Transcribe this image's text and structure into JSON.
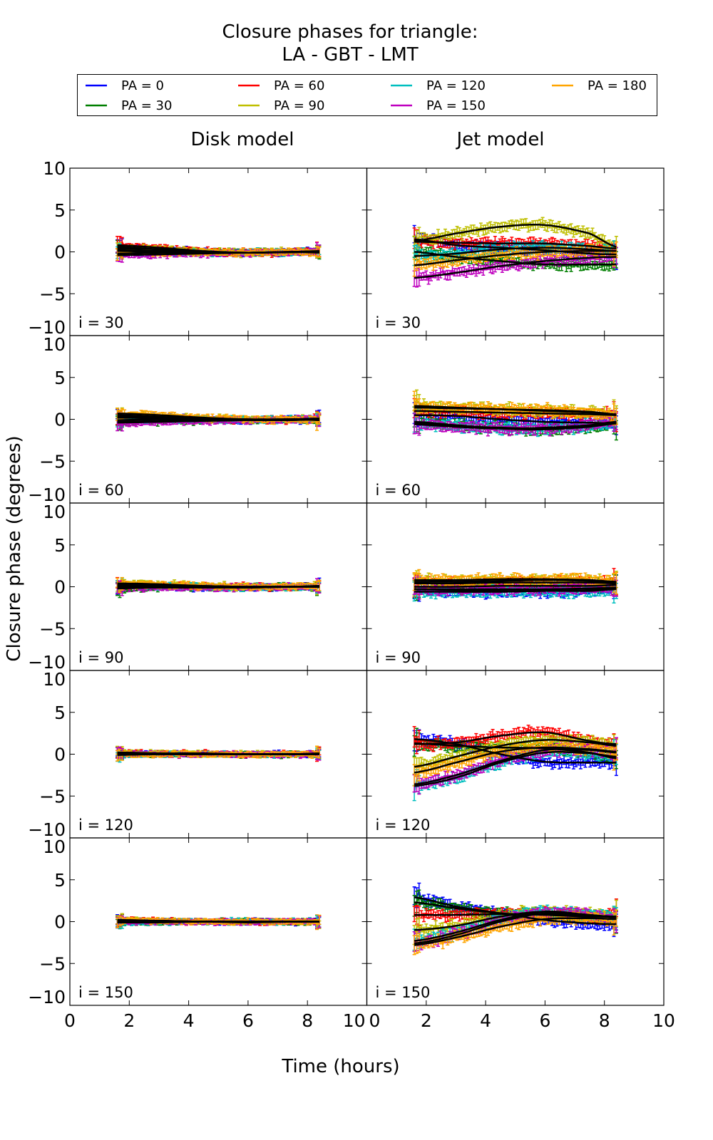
{
  "chart_data": {
    "type": "line",
    "title_line1": "Closure phases for triangle:",
    "title_line2": "LA - GBT - LMT",
    "xlabel": "Time (hours)",
    "ylabel": "Closure phase (degrees)",
    "xlim": [
      0,
      10
    ],
    "ylim": [
      -10,
      10
    ],
    "xticks": [
      0,
      2,
      4,
      6,
      8,
      10
    ],
    "yticks": [
      -10,
      -5,
      0,
      5,
      10
    ],
    "grid": false,
    "legend_placement": "top",
    "columns": [
      "Disk model",
      "Jet model"
    ],
    "rows": [
      "i = 30",
      "i = 60",
      "i = 90",
      "i = 120",
      "i = 150"
    ],
    "series": [
      {
        "name": "PA = 0",
        "color": "#0000ff"
      },
      {
        "name": "PA = 30",
        "color": "#007f00"
      },
      {
        "name": "PA = 60",
        "color": "#ff0000"
      },
      {
        "name": "PA = 90",
        "color": "#bfbf00"
      },
      {
        "name": "PA = 120",
        "color": "#00bfbf"
      },
      {
        "name": "PA = 150",
        "color": "#bf00bf"
      },
      {
        "name": "PA = 180",
        "color": "#ffa500"
      }
    ],
    "model_line_color": "#000000",
    "sample_times": [
      1.6,
      3.0,
      4.5,
      6.0,
      7.5,
      8.4
    ],
    "panels": [
      {
        "row": "i = 30",
        "column": "Disk model",
        "errorbar": 0.3,
        "model": [
          [
            0.6,
            0.3,
            0.05,
            -0.1,
            0,
            0
          ],
          [
            0.2,
            0.1,
            0,
            -0.1,
            -0.05,
            0
          ],
          [
            0.8,
            0.5,
            0.1,
            -0.1,
            0,
            0.1
          ],
          [
            0.4,
            0.3,
            0.05,
            -0.1,
            0,
            0
          ],
          [
            -0.2,
            -0.1,
            -0.1,
            -0.1,
            0,
            0
          ],
          [
            -0.4,
            -0.3,
            -0.2,
            -0.1,
            -0.05,
            0
          ],
          [
            0.1,
            0,
            -0.05,
            -0.1,
            0,
            -0.1
          ]
        ]
      },
      {
        "row": "i = 30",
        "column": "Jet model",
        "errorbar": 0.5,
        "model": [
          [
            1.5,
            0.8,
            0.5,
            0.2,
            -0.2,
            -0.3
          ],
          [
            0,
            -0.6,
            -1.1,
            -1.5,
            -1.5,
            -1.5
          ],
          [
            1.2,
            1.1,
            1.0,
            1.0,
            0.7,
            0.4
          ],
          [
            1.3,
            2.2,
            3.0,
            3.2,
            2.2,
            0.6
          ],
          [
            -0.5,
            -0.2,
            0.3,
            0.5,
            0.3,
            0.1
          ],
          [
            -3.1,
            -2.5,
            -1.7,
            -1.1,
            -0.7,
            -0.6
          ],
          [
            -1.6,
            -1.0,
            -0.4,
            0,
            0.1,
            0.1
          ]
        ]
      },
      {
        "row": "i = 60",
        "column": "Disk model",
        "errorbar": 0.3,
        "model": [
          [
            0.3,
            0.2,
            0,
            -0.1,
            0,
            0.1
          ],
          [
            -0.3,
            -0.2,
            -0.1,
            -0.1,
            -0.1,
            0
          ],
          [
            0.2,
            0.1,
            0,
            -0.1,
            0,
            0
          ],
          [
            0.5,
            0.3,
            0.1,
            0,
            0,
            0
          ],
          [
            -0.1,
            0,
            0,
            -0.1,
            0,
            0
          ],
          [
            -0.4,
            -0.3,
            -0.2,
            -0.1,
            0,
            0
          ],
          [
            0.7,
            0.5,
            0.2,
            0,
            0,
            -0.1
          ]
        ]
      },
      {
        "row": "i = 60",
        "column": "Jet model",
        "errorbar": 0.5,
        "model": [
          [
            0.5,
            0.4,
            0,
            -0.3,
            -0.4,
            -0.5
          ],
          [
            -0.3,
            -0.7,
            -1.1,
            -1.2,
            -0.9,
            -0.5
          ],
          [
            1.0,
            0.9,
            0.8,
            0.7,
            0.6,
            0.5
          ],
          [
            1.6,
            1.4,
            1.2,
            1.1,
            0.9,
            0.6
          ],
          [
            -0.5,
            -0.8,
            -1.0,
            -1.1,
            -0.8,
            -0.4
          ],
          [
            -0.6,
            -0.9,
            -1.1,
            -1.0,
            -0.7,
            -0.3
          ],
          [
            1.4,
            1.3,
            1.2,
            1.0,
            0.8,
            0.5
          ]
        ]
      },
      {
        "row": "i = 90",
        "column": "Disk model",
        "errorbar": 0.3,
        "model": [
          [
            0.1,
            0,
            -0.1,
            -0.1,
            0,
            0
          ],
          [
            -0.2,
            -0.1,
            -0.1,
            0,
            0,
            0
          ],
          [
            0.2,
            0.1,
            0,
            0,
            0,
            0
          ],
          [
            0.4,
            0.3,
            0.1,
            0,
            0,
            0.1
          ],
          [
            0,
            0,
            0,
            -0.1,
            0,
            0
          ],
          [
            -0.1,
            -0.1,
            -0.1,
            -0.1,
            0,
            0
          ],
          [
            0.3,
            0.2,
            0.1,
            0,
            0,
            0.1
          ]
        ]
      },
      {
        "row": "i = 90",
        "column": "Jet model",
        "errorbar": 0.5,
        "model": [
          [
            -0.3,
            -0.4,
            -0.5,
            -0.5,
            -0.4,
            -0.2
          ],
          [
            0,
            0,
            0.1,
            0.1,
            0.1,
            0.2
          ],
          [
            0.4,
            0.4,
            0.5,
            0.5,
            0.5,
            0.4
          ],
          [
            0.6,
            0.6,
            0.7,
            0.8,
            0.7,
            0.5
          ],
          [
            -0.6,
            -0.6,
            -0.6,
            -0.5,
            -0.5,
            -0.3
          ],
          [
            -0.3,
            -0.3,
            -0.3,
            -0.3,
            -0.2,
            -0.1
          ],
          [
            0.8,
            0.8,
            0.9,
            0.9,
            0.8,
            0.6
          ]
        ]
      },
      {
        "row": "i = 120",
        "column": "Disk model",
        "errorbar": 0.25,
        "model": [
          [
            0.1,
            0.1,
            0,
            0,
            0,
            0
          ],
          [
            0,
            0,
            0,
            0,
            0,
            0
          ],
          [
            0.2,
            0.1,
            0.1,
            0,
            0,
            0
          ],
          [
            0.2,
            0.1,
            0,
            0,
            0,
            0.1
          ],
          [
            -0.1,
            0,
            0,
            0,
            0,
            0
          ],
          [
            0.1,
            0,
            0,
            0,
            0,
            0
          ],
          [
            0,
            0,
            0,
            0,
            0,
            0
          ]
        ]
      },
      {
        "row": "i = 120",
        "column": "Jet model",
        "errorbar": 0.5,
        "model": [
          [
            1.8,
            1.2,
            0,
            -0.9,
            -1,
            -1
          ],
          [
            1.3,
            1.0,
            0.8,
            0.7,
            0.2,
            -0.5
          ],
          [
            1.2,
            1.4,
            2.2,
            2.6,
            1.6,
            1.2
          ],
          [
            -1.5,
            -0.3,
            1.0,
            1.7,
            1.4,
            1.0
          ],
          [
            -3.8,
            -2.8,
            -1.0,
            0.2,
            0.1,
            -0.3
          ],
          [
            -3.6,
            -2.5,
            -0.8,
            0.5,
            0.5,
            0.2
          ],
          [
            -2.2,
            -1.0,
            0.3,
            0.8,
            0.6,
            0.3
          ]
        ]
      },
      {
        "row": "i = 150",
        "column": "Disk model",
        "errorbar": 0.25,
        "model": [
          [
            0.1,
            0,
            0,
            0,
            0,
            0
          ],
          [
            -0.1,
            -0.1,
            0,
            0,
            0,
            0
          ],
          [
            0.1,
            0.1,
            0,
            0,
            0,
            0
          ],
          [
            0.2,
            0.1,
            0,
            0,
            0,
            0
          ],
          [
            -0.1,
            0,
            0,
            0,
            0,
            0
          ],
          [
            0,
            0,
            0,
            -0.1,
            0,
            0
          ],
          [
            0.1,
            0.1,
            0,
            0,
            0,
            0
          ]
        ]
      },
      {
        "row": "i = 150",
        "column": "Jet model",
        "errorbar": 0.5,
        "model": [
          [
            2.9,
            1.8,
            1.0,
            0.2,
            -0.2,
            -0.3
          ],
          [
            2.3,
            1.6,
            1.0,
            0.8,
            0.6,
            0.6
          ],
          [
            0.8,
            0.8,
            0.9,
            0.9,
            0.7,
            0.6
          ],
          [
            -1.0,
            -0.5,
            0.6,
            1.2,
            0.8,
            0.6
          ],
          [
            -2.3,
            -1.3,
            0.2,
            1.2,
            0.8,
            0.5
          ],
          [
            -2.6,
            -1.6,
            0,
            1.0,
            0.8,
            0.5
          ],
          [
            -2.8,
            -1.9,
            -0.6,
            0.3,
            0.4,
            0.3
          ]
        ]
      }
    ]
  }
}
